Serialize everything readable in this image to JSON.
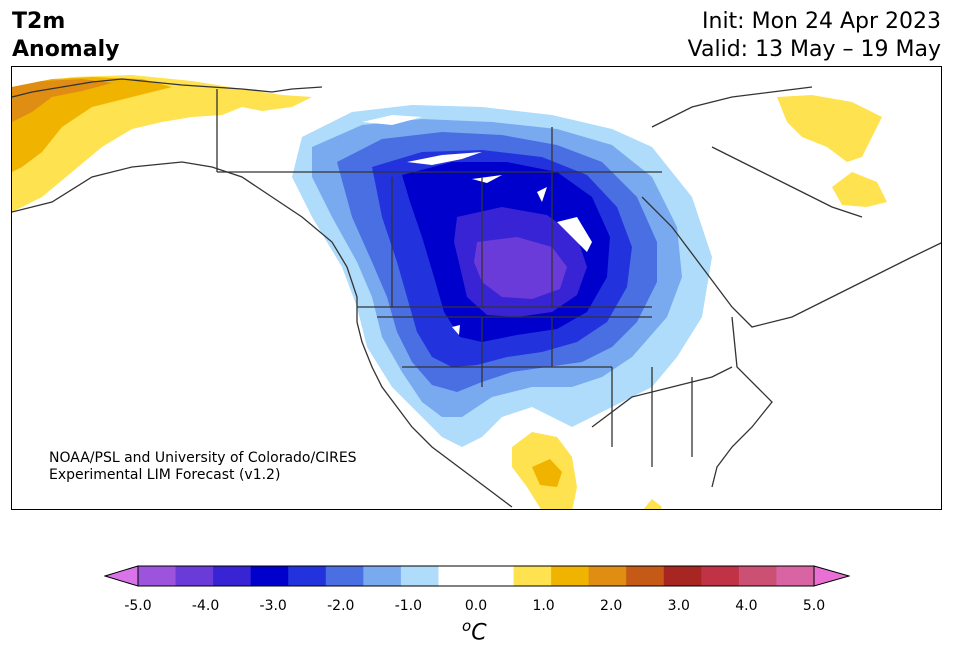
{
  "title": {
    "variable": "T2m",
    "subtitle": "Anomaly"
  },
  "init_text": "Init: Mon 24 Apr 2023",
  "valid_text": "Valid: 13 May – 19 May",
  "credit": {
    "line1": "NOAA/PSL and University of Colorado/CIRES",
    "line2": "Experimental LIM Forecast (v1.2)"
  },
  "colorbar": {
    "unit": "oC",
    "unit_base": "C",
    "unit_sup": "o",
    "ticks": [
      "-5.0",
      "-4.0",
      "-3.0",
      "-2.0",
      "-1.0",
      "0.0",
      "1.0",
      "2.0",
      "3.0",
      "4.0",
      "5.0"
    ],
    "range": [
      -5.0,
      5.0
    ],
    "extend": "both",
    "colors": [
      "#d873e8",
      "#9d54dd",
      "#6a3bd8",
      "#3824d4",
      "#0000cc",
      "#2233dd",
      "#4a6fe3",
      "#79aaf0",
      "#aedcfa",
      "#ffffff",
      "#ffffff",
      "#ffe24f",
      "#f0b400",
      "#e08d13",
      "#c45a15",
      "#a82622",
      "#c03246",
      "#cc4f74",
      "#d864a4",
      "#e870d4"
    ]
  }
}
